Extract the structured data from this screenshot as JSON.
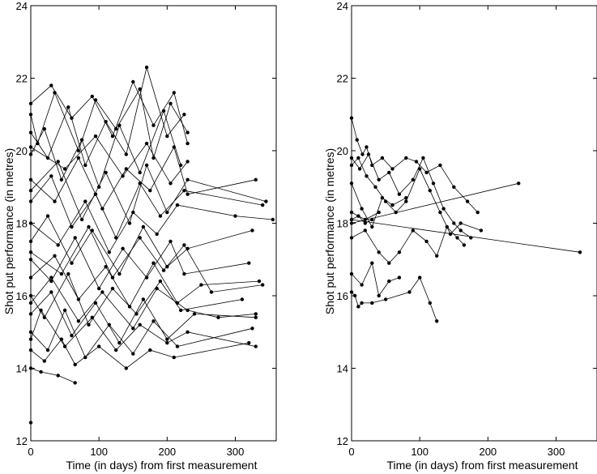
{
  "chart_data": [
    {
      "type": "line",
      "xlabel": "Time (in days) from first measurement",
      "ylabel": "Shot put performance (in metres)",
      "xlim": [
        0,
        360
      ],
      "ylim": [
        12,
        24
      ],
      "xticks": [
        0,
        100,
        200,
        300
      ],
      "yticks": [
        12,
        14,
        16,
        18,
        20,
        22,
        24
      ],
      "grid": false,
      "series": [
        {
          "x": [
            0,
            30,
            60,
            90,
            120,
            150,
            180,
            210,
            230
          ],
          "y": [
            21.3,
            21.8,
            20.9,
            21.5,
            20.4,
            21.9,
            20.7,
            21.6,
            20.2
          ]
        },
        {
          "x": [
            0,
            25,
            55,
            80,
            110,
            140,
            170,
            200,
            225
          ],
          "y": [
            20.5,
            19.8,
            21.2,
            19.6,
            20.8,
            19.9,
            22.3,
            20.4,
            21.0
          ]
        },
        {
          "x": [
            0,
            20,
            45,
            75,
            100,
            130,
            160,
            195,
            220
          ],
          "y": [
            19.9,
            20.6,
            19.2,
            20.3,
            19.0,
            20.7,
            19.4,
            21.1,
            19.6
          ]
        },
        {
          "x": [
            0,
            35,
            70,
            105,
            140,
            175,
            210,
            230,
            330
          ],
          "y": [
            19.2,
            18.6,
            19.8,
            18.4,
            19.5,
            18.9,
            20.1,
            18.8,
            19.2
          ]
        },
        {
          "x": [
            0,
            30,
            60,
            95,
            125,
            160,
            190,
            225,
            340
          ],
          "y": [
            18.6,
            19.3,
            17.9,
            18.8,
            17.6,
            19.1,
            18.2,
            18.9,
            18.5
          ]
        },
        {
          "x": [
            0,
            40,
            80,
            115,
            150,
            185,
            215,
            300,
            355
          ],
          "y": [
            18.0,
            17.4,
            18.6,
            17.2,
            18.3,
            17.7,
            18.5,
            18.2,
            18.1
          ]
        },
        {
          "x": [
            0,
            25,
            60,
            90,
            130,
            165,
            200,
            230,
            325
          ],
          "y": [
            17.5,
            18.2,
            16.9,
            17.8,
            16.6,
            17.9,
            16.8,
            17.3,
            17.8
          ]
        },
        {
          "x": [
            0,
            30,
            65,
            100,
            135,
            170,
            205,
            225,
            320
          ],
          "y": [
            17.0,
            16.4,
            17.6,
            16.2,
            17.3,
            16.5,
            17.5,
            16.6,
            16.9
          ]
        },
        {
          "x": [
            0,
            35,
            70,
            110,
            145,
            180,
            215,
            250,
            335
          ],
          "y": [
            16.5,
            17.1,
            15.9,
            16.8,
            15.7,
            16.9,
            15.8,
            16.3,
            16.4
          ]
        },
        {
          "x": [
            0,
            20,
            55,
            85,
            120,
            155,
            190,
            220,
            310
          ],
          "y": [
            16.0,
            15.4,
            16.6,
            15.2,
            16.2,
            15.5,
            16.4,
            15.6,
            15.9
          ]
        },
        {
          "x": [
            0,
            30,
            60,
            95,
            130,
            165,
            200,
            240,
            330
          ],
          "y": [
            15.5,
            16.1,
            14.9,
            15.8,
            14.7,
            15.9,
            14.8,
            15.5,
            15.4
          ]
        },
        {
          "x": [
            0,
            25,
            50,
            80,
            115,
            150,
            180,
            215,
            325
          ],
          "y": [
            15.0,
            14.5,
            15.6,
            14.3,
            15.2,
            14.4,
            15.3,
            14.6,
            15.1
          ]
        },
        {
          "x": [
            0,
            20,
            45,
            65,
            100,
            140,
            175,
            210,
            320
          ],
          "y": [
            14.5,
            14.2,
            14.8,
            14.1,
            14.6,
            14.0,
            14.5,
            14.3,
            14.7
          ]
        },
        {
          "x": [
            0,
            15,
            40,
            65
          ],
          "y": [
            14.0,
            13.9,
            13.8,
            13.6
          ]
        },
        {
          "x": [
            0,
            10,
            35,
            70,
            95,
            125,
            160,
            180,
            205,
            230
          ],
          "y": [
            21.0,
            20.2,
            21.6,
            20.0,
            21.4,
            20.6,
            21.7,
            19.8,
            21.3,
            20.5
          ]
        },
        {
          "x": [
            0,
            40,
            75,
            110,
            145,
            170,
            200,
            230,
            345
          ],
          "y": [
            18.9,
            19.7,
            18.1,
            19.4,
            18.0,
            19.6,
            18.3,
            19.2,
            18.6
          ]
        },
        {
          "x": [
            0,
            45,
            85,
            120,
            160,
            195,
            225,
            265,
            340
          ],
          "y": [
            17.2,
            16.6,
            17.9,
            16.5,
            17.6,
            16.7,
            17.4,
            16.1,
            16.3
          ]
        },
        {
          "x": [
            0,
            30,
            70,
            105,
            150,
            185,
            230,
            275,
            330
          ],
          "y": [
            15.8,
            16.5,
            15.3,
            16.1,
            15.1,
            16.2,
            15.6,
            15.4,
            15.5
          ]
        },
        {
          "x": [
            0,
            50,
            95,
            135,
            170,
            205,
            230
          ],
          "y": [
            20.1,
            19.5,
            20.4,
            19.3,
            20.2,
            19.1,
            19.7
          ]
        },
        {
          "x": [
            0,
            15,
            50,
            90,
            125,
            160,
            200,
            230,
            330
          ],
          "y": [
            14.8,
            15.6,
            14.6,
            15.4,
            14.5,
            15.2,
            14.7,
            15.0,
            14.6
          ]
        },
        {
          "x": [
            0
          ],
          "y": [
            12.5
          ]
        }
      ]
    },
    {
      "type": "line",
      "xlabel": "Time (in days) from first measurement",
      "ylabel": "Shot put performance (in metres)",
      "xlim": [
        0,
        360
      ],
      "ylim": [
        12,
        24
      ],
      "xticks": [
        0,
        100,
        200,
        300
      ],
      "yticks": [
        12,
        14,
        16,
        18,
        20,
        22,
        24
      ],
      "grid": false,
      "series": [
        {
          "x": [
            0,
            8,
            16,
            22,
            30,
            45,
            60,
            80,
            95,
            110,
            130,
            150,
            170,
            185
          ],
          "y": [
            20.9,
            20.3,
            19.9,
            20.1,
            19.6,
            19.8,
            19.5,
            19.8,
            19.7,
            19.4,
            19.6,
            19.0,
            18.6,
            18.3
          ]
        },
        {
          "x": [
            0,
            12,
            25,
            40,
            55,
            70,
            90,
            105,
            120,
            135,
            150,
            160,
            175
          ],
          "y": [
            19.8,
            19.5,
            19.9,
            19.2,
            19.4,
            18.8,
            19.2,
            19.8,
            19.1,
            18.4,
            18.0,
            17.8,
            17.6
          ]
        },
        {
          "x": [
            0,
            10,
            22,
            35,
            50,
            65,
            80,
            100,
            115,
            130,
            145,
            160,
            190
          ],
          "y": [
            19.6,
            19.8,
            19.3,
            19.0,
            18.6,
            18.3,
            18.6,
            19.5,
            18.9,
            18.3,
            17.7,
            18.0,
            17.8
          ]
        },
        {
          "x": [
            0,
            15,
            30,
            45,
            60,
            80
          ],
          "y": [
            19.1,
            18.4,
            17.9,
            18.7,
            18.5,
            18.7
          ]
        },
        {
          "x": [
            0,
            20,
            40
          ],
          "y": [
            18.3,
            18.1,
            18.3
          ]
        },
        {
          "x": [
            0,
            245
          ],
          "y": [
            18.0,
            19.1
          ]
        },
        {
          "x": [
            0,
            335
          ],
          "y": [
            18.1,
            17.2
          ]
        },
        {
          "x": [
            0,
            20,
            40,
            55,
            70,
            90,
            110,
            125,
            140,
            155,
            165
          ],
          "y": [
            17.6,
            17.8,
            17.2,
            16.9,
            17.2,
            17.8,
            17.5,
            17.1,
            17.9,
            17.6,
            17.4
          ]
        },
        {
          "x": [
            0,
            15,
            30,
            40,
            55,
            70
          ],
          "y": [
            16.6,
            16.3,
            16.9,
            16.0,
            16.4,
            16.5
          ]
        },
        {
          "x": [
            0,
            5,
            10,
            15,
            30,
            50,
            85,
            100,
            115,
            125
          ],
          "y": [
            16.1,
            16.0,
            15.7,
            15.8,
            15.8,
            15.9,
            16.1,
            16.5,
            15.8,
            15.3
          ]
        },
        {
          "x": [
            0,
            10,
            20,
            30
          ],
          "y": [
            18.1,
            18.2,
            18.0,
            18.1
          ]
        }
      ]
    }
  ]
}
